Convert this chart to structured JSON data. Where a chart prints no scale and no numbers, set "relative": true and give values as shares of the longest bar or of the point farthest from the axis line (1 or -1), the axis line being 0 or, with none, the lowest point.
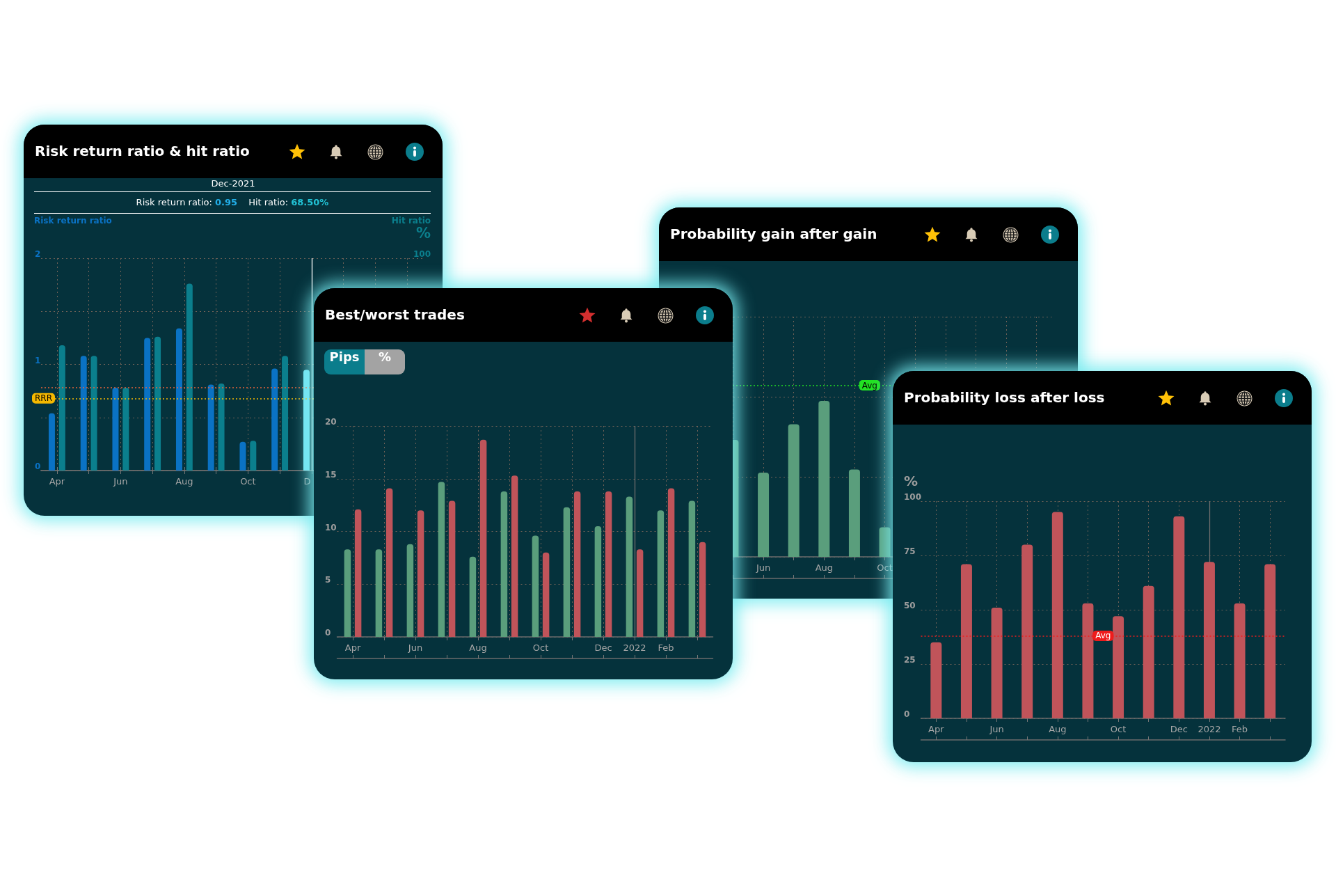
{
  "chart_data": [
    {
      "type": "bar",
      "title": "Risk return ratio & hit ratio",
      "ylabel": "Risk return ratio",
      "y2label": "Hit ratio",
      "annotations": [
        "Dec-2021",
        "Risk return ratio: 0.95",
        "Hit ratio: 68.50%",
        "%"
      ],
      "categories": [
        "Apr",
        null,
        "Jun",
        null,
        "Aug",
        null,
        "Oct",
        null,
        "D",
        null,
        null,
        null
      ],
      "series": [
        {
          "colors": [
            "#0a72c4",
            "#0a72c4",
            "#0a72c4",
            "#0a72c4",
            "#0a72c4",
            "#0a72c4",
            "#0a72c4",
            "#0a72c4",
            "#74e4f4",
            null,
            null,
            null
          ],
          "values": [
            0.54,
            1.08,
            0.78,
            1.25,
            1.34,
            0.81,
            0.27,
            0.96,
            0.95,
            null,
            null,
            null
          ]
        },
        {
          "color": "#0b7f8d",
          "axis": "y2",
          "values": [
            59,
            54,
            39,
            63,
            88,
            41,
            14,
            54,
            null,
            null,
            null,
            null
          ]
        }
      ],
      "ylim": [
        0,
        2
      ],
      "yticks": [
        0,
        {
          "value": 0.5,
          "label": null
        },
        1,
        {
          "value": 1.5,
          "label": null
        },
        2
      ],
      "y2lim": [
        0,
        100
      ],
      "y2ticks": [
        100
      ],
      "ref_lines": [
        {
          "axis": "y",
          "value": 0.78,
          "color": "#e8643a",
          "line_style": "dotted"
        },
        {
          "axis": "y",
          "value": 0.68,
          "label": "RRR",
          "color": "#f5b800",
          "line_style": "dotted"
        },
        {
          "axis": "x",
          "value": "D",
          "color": "#ffffff",
          "line_style": "solid"
        }
      ],
      "grid": true
    },
    {
      "type": "bar",
      "title": "Best/worst trades",
      "annotations": [
        "Pips",
        "%"
      ],
      "categories": [
        "Apr",
        null,
        "Jun",
        null,
        "Aug",
        null,
        "Oct",
        null,
        "Dec",
        "2022",
        "Feb",
        null
      ],
      "series": [
        {
          "color": "#5a9e7c",
          "values": [
            8.3,
            8.3,
            8.8,
            14.7,
            7.6,
            13.8,
            9.6,
            12.3,
            10.5,
            13.3,
            12.0,
            12.9
          ]
        },
        {
          "color": "#c0545a",
          "values": [
            12.1,
            14.1,
            12.0,
            12.9,
            18.7,
            15.3,
            8.0,
            13.8,
            13.8,
            8.3,
            14.1,
            9.0
          ]
        }
      ],
      "ylim": [
        0,
        20
      ],
      "yticks": [
        0,
        5,
        10,
        15,
        20
      ],
      "ref_lines": [
        {
          "axis": "x",
          "value": "2022",
          "color": "#6e6e6e",
          "line_style": "solid"
        }
      ],
      "grid": true
    },
    {
      "type": "bar",
      "title": "Probability gain after gain",
      "relative": true,
      "categories": [
        null,
        null,
        "Jun",
        null,
        "Aug",
        null,
        "Oct",
        null,
        null,
        null,
        null,
        null
      ],
      "series": [
        {
          "color": "#5a9e7c",
          "values": [
            null,
            0.75,
            0.54,
            0.85,
            1,
            0.56,
            0.19,
            null,
            null,
            null,
            null,
            null
          ]
        }
      ],
      "ref_lines": [
        {
          "axis": "y",
          "value": 1.1,
          "label": "Avg",
          "color": "#22e022",
          "line_style": "dotted"
        }
      ],
      "grid": true
    },
    {
      "type": "bar",
      "title": "Probability loss after loss",
      "ylabel": "%",
      "categories": [
        "Apr",
        null,
        "Jun",
        null,
        "Aug",
        null,
        "Oct",
        null,
        "Dec",
        "2022",
        "Feb",
        null
      ],
      "series": [
        {
          "color": "#c0545a",
          "values": [
            35,
            71,
            51,
            80,
            95,
            53,
            47,
            61,
            93,
            72,
            53,
            71
          ]
        }
      ],
      "ylim": [
        0,
        100
      ],
      "yticks": [
        0,
        25,
        50,
        75,
        100
      ],
      "ref_lines": [
        {
          "axis": "y",
          "value": 38,
          "label": "Avg",
          "color": "#ee1c1c",
          "line_style": "dotted"
        },
        {
          "axis": "x",
          "value": "2022",
          "color": "#6e6e6e",
          "line_style": "solid"
        }
      ],
      "grid": true
    }
  ]
}
